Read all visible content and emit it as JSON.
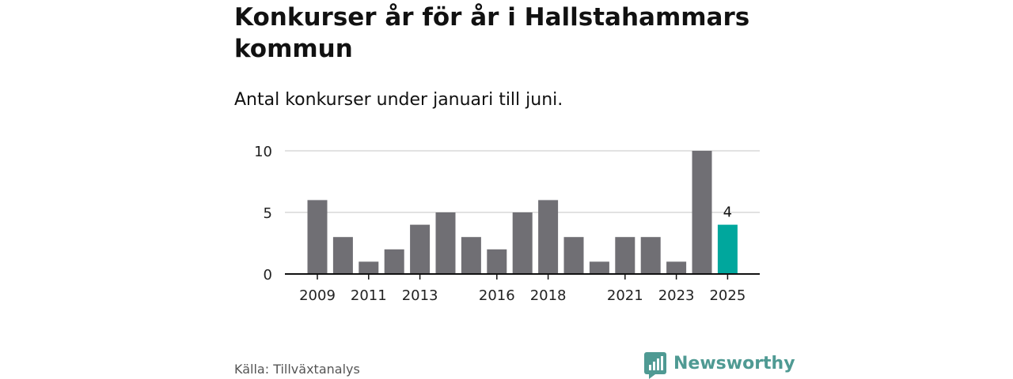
{
  "header": {
    "title": "Konkurser år för år i Hallstahammars kommun",
    "subtitle": "Antal konkurser under januari till juni."
  },
  "footer": {
    "source": "Källa: Tillväxtanalys",
    "brand": "Newsworthy"
  },
  "colors": {
    "bar": "#706f74",
    "highlight": "#00a79d",
    "grid": "#d9d9d9",
    "axis": "#111111",
    "brand": "#4f9a93"
  },
  "chart_data": {
    "type": "bar",
    "categories": [
      "2009",
      "2010",
      "2011",
      "2012",
      "2013",
      "2014",
      "2015",
      "2016",
      "2017",
      "2018",
      "2019",
      "2020",
      "2021",
      "2022",
      "2023",
      "2024",
      "2025"
    ],
    "values": [
      6,
      3,
      1,
      2,
      4,
      5,
      3,
      2,
      5,
      6,
      3,
      1,
      3,
      3,
      1,
      10,
      4
    ],
    "x_tick_labels": [
      "2009",
      "2011",
      "2013",
      "2016",
      "2018",
      "2021",
      "2023",
      "2025"
    ],
    "y_ticks": [
      0,
      5,
      10
    ],
    "ylim": [
      0,
      10
    ],
    "highlight_category": "2025",
    "data_labels": [
      {
        "category": "2025",
        "text": "4"
      }
    ],
    "grid": true,
    "title": "Konkurser år för år i Hallstahammars kommun",
    "subtitle": "Antal konkurser under januari till juni.",
    "xlabel": "",
    "ylabel": ""
  }
}
